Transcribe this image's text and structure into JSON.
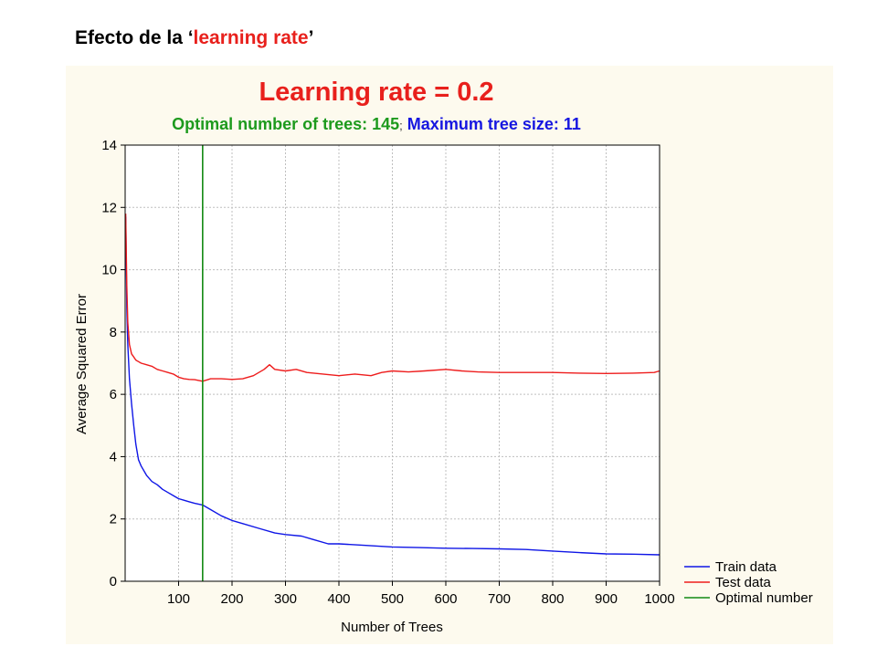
{
  "slide": {
    "title_prefix": "Efecto de la ‘",
    "title_highlight": "learning rate",
    "title_suffix": "’"
  },
  "colors": {
    "train": "#0f16e6",
    "test": "#ee1c1c",
    "optimal": "#138a13",
    "title_red": "#e8201c",
    "subtitle_green": "#1d9a1d",
    "subtitle_blue": "#1616e0",
    "panel": "#fdfaee",
    "grid": "#bfbfbf"
  },
  "chart_data": {
    "type": "line",
    "title": "Learning rate = 0.2",
    "subtitle_part1": "Optimal number of trees: 145",
    "subtitle_separator": ";",
    "subtitle_part2": " Maximum tree size: 11",
    "xlabel": "Number of Trees",
    "ylabel": "Average Squared Error",
    "xlim": [
      0,
      1000
    ],
    "ylim": [
      0,
      14
    ],
    "xticks": [
      100,
      200,
      300,
      400,
      500,
      600,
      700,
      800,
      900,
      1000
    ],
    "yticks": [
      0,
      2,
      4,
      6,
      8,
      10,
      12,
      14
    ],
    "grid": true,
    "legend_position": "bottom-right outside",
    "optimal_x": 145,
    "series": [
      {
        "name": "Train data",
        "color_key": "train",
        "x": [
          1,
          3,
          5,
          8,
          12,
          16,
          20,
          25,
          30,
          40,
          50,
          60,
          70,
          80,
          90,
          100,
          110,
          120,
          130,
          145,
          160,
          180,
          200,
          220,
          250,
          280,
          300,
          330,
          350,
          380,
          400,
          450,
          500,
          550,
          600,
          650,
          700,
          750,
          800,
          850,
          900,
          950,
          1000
        ],
        "y": [
          11.7,
          8.8,
          7.6,
          6.5,
          5.7,
          5.0,
          4.4,
          3.9,
          3.7,
          3.4,
          3.2,
          3.1,
          2.95,
          2.85,
          2.75,
          2.65,
          2.6,
          2.55,
          2.5,
          2.45,
          2.3,
          2.1,
          1.95,
          1.85,
          1.7,
          1.55,
          1.5,
          1.45,
          1.35,
          1.2,
          1.2,
          1.15,
          1.1,
          1.08,
          1.06,
          1.05,
          1.04,
          1.02,
          0.97,
          0.92,
          0.88,
          0.87,
          0.85
        ]
      },
      {
        "name": "Test data",
        "color_key": "test",
        "x": [
          1,
          3,
          5,
          8,
          12,
          16,
          20,
          25,
          30,
          40,
          50,
          60,
          70,
          80,
          90,
          100,
          110,
          120,
          130,
          145,
          160,
          180,
          200,
          220,
          240,
          260,
          270,
          280,
          300,
          320,
          340,
          370,
          400,
          430,
          460,
          480,
          500,
          530,
          560,
          600,
          630,
          660,
          700,
          750,
          800,
          850,
          900,
          950,
          990,
          1000
        ],
        "y": [
          11.8,
          9.5,
          8.3,
          7.6,
          7.3,
          7.2,
          7.1,
          7.05,
          7.0,
          6.95,
          6.9,
          6.8,
          6.75,
          6.7,
          6.65,
          6.55,
          6.5,
          6.48,
          6.47,
          6.42,
          6.5,
          6.5,
          6.48,
          6.5,
          6.6,
          6.8,
          6.95,
          6.8,
          6.75,
          6.8,
          6.7,
          6.65,
          6.6,
          6.65,
          6.6,
          6.7,
          6.75,
          6.72,
          6.75,
          6.8,
          6.75,
          6.72,
          6.7,
          6.7,
          6.7,
          6.68,
          6.67,
          6.68,
          6.7,
          6.75
        ]
      }
    ],
    "legend": [
      {
        "label": "Train data",
        "color_key": "train"
      },
      {
        "label": "Test data",
        "color_key": "test"
      },
      {
        "label": "Optimal number",
        "color_key": "optimal"
      }
    ]
  }
}
